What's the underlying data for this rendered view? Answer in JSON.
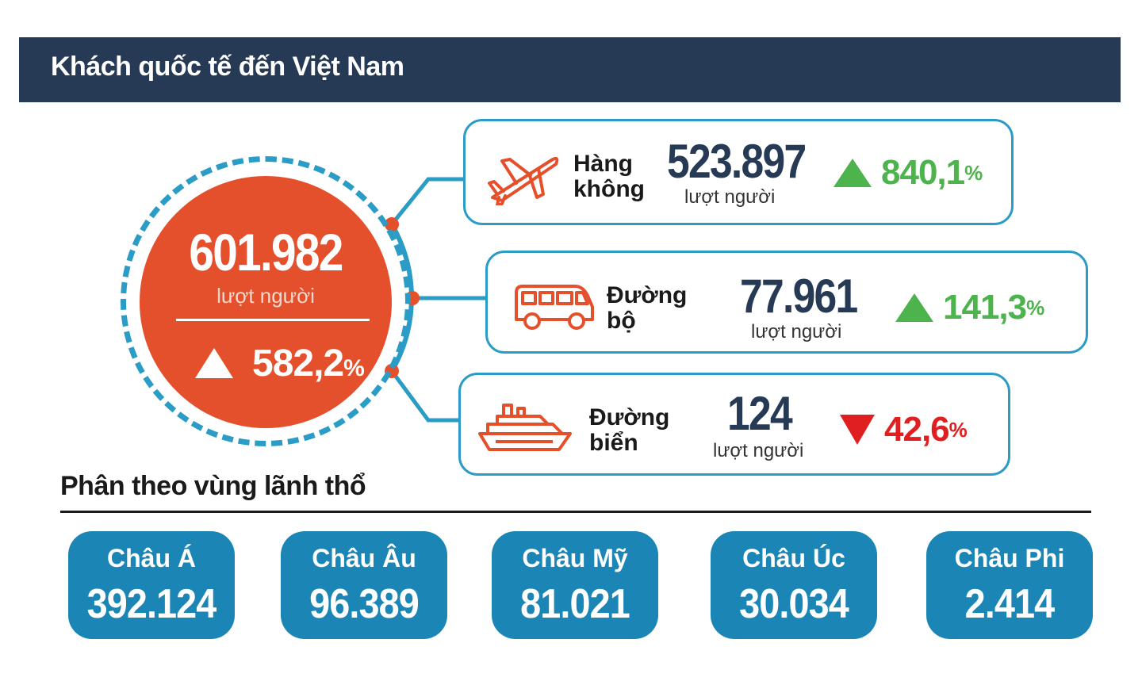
{
  "header": {
    "title": "Khách quốc tế đến Việt Nam"
  },
  "total": {
    "value": "601.982",
    "unit": "lượt người",
    "change": "582,2",
    "pct": "%"
  },
  "modes": [
    {
      "label_line1": "Hàng",
      "label_line2": "không",
      "value": "523.897",
      "unit": "lượt người",
      "change": "840,1",
      "pct": "%",
      "direction": "up",
      "icon": "airplane-icon"
    },
    {
      "label_line1": "Đường",
      "label_line2": "bộ",
      "value": "77.961",
      "unit": "lượt người",
      "change": "141,3",
      "pct": "%",
      "direction": "up",
      "icon": "van-icon"
    },
    {
      "label_line1": "Đường",
      "label_line2": "biển",
      "value": "124",
      "unit": "lượt người",
      "change": "42,6",
      "pct": "%",
      "direction": "down",
      "icon": "ship-icon"
    }
  ],
  "regions_section": {
    "title": "Phân theo vùng lãnh thổ"
  },
  "regions": [
    {
      "name": "Châu Á",
      "value": "392.124"
    },
    {
      "name": "Châu Âu",
      "value": "96.389"
    },
    {
      "name": "Châu Mỹ",
      "value": "81.021"
    },
    {
      "name": "Châu Úc",
      "value": "30.034"
    },
    {
      "name": "Châu Phi",
      "value": "2.414"
    }
  ],
  "colors": {
    "header_bg": "#263a55",
    "circle": "#e4502c",
    "accent_blue": "#2b9cc5",
    "region_bg": "#1b86b6",
    "up": "#4db34d",
    "down": "#e02020"
  }
}
